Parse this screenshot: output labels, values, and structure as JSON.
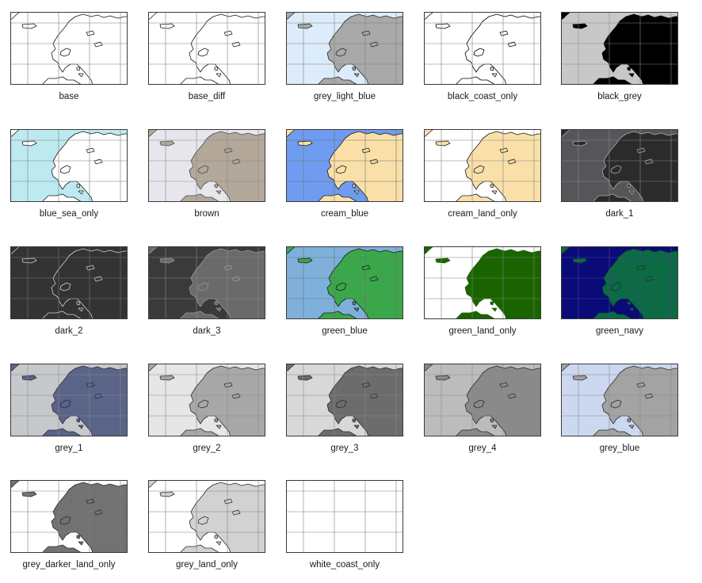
{
  "gallery": {
    "tiles": [
      {
        "label": "base",
        "land": "#ffffff",
        "sea": "#ffffff",
        "coast": "#1a1a1a",
        "grid": "#7f7f7f"
      },
      {
        "label": "base_diff",
        "land": "#ffffff",
        "sea": "#ffffff",
        "coast": "#1a1a1a",
        "grid": "#7f7f7f"
      },
      {
        "label": "grey_light_blue",
        "land": "#a9a9a9",
        "sea": "#dcecfa",
        "coast": "#2a2a2a",
        "grid": "#7f7f7f"
      },
      {
        "label": "black_coast_only",
        "land": "#ffffff",
        "sea": "#ffffff",
        "coast": "#000000",
        "grid": "#7f7f7f"
      },
      {
        "label": "black_grey",
        "land": "#000000",
        "sea": "#c8c8c8",
        "coast": "#000000",
        "grid": "#8a8a8a"
      },
      {
        "label": "blue_sea_only",
        "land": "#ffffff",
        "sea": "#bdeaf0",
        "coast": "#1a1a1a",
        "grid": "#7f7f7f"
      },
      {
        "label": "brown",
        "land": "#b3a89a",
        "sea": "#e6e6ec",
        "coast": "#4a4a4a",
        "grid": "#8a8a8a"
      },
      {
        "label": "cream_blue",
        "land": "#fae0a8",
        "sea": "#6f9cf0",
        "coast": "#1a1a1a",
        "grid": "#6f6f6f"
      },
      {
        "label": "cream_land_only",
        "land": "#fae0a8",
        "sea": "#ffffff",
        "coast": "#1a1a1a",
        "grid": "#7f7f7f"
      },
      {
        "label": "dark_1",
        "land": "#2b2b2b",
        "sea": "#56565a",
        "coast": "#aaaaaa",
        "grid": "#8a8a8a"
      },
      {
        "label": "dark_2",
        "land": "#333333",
        "sea": "#333333",
        "coast": "#d0d0d0",
        "grid": "#777777"
      },
      {
        "label": "dark_3",
        "land": "#6a6a6a",
        "sea": "#3a3a3a",
        "coast": "#9a9a9a",
        "grid": "#8a8a8a"
      },
      {
        "label": "green_blue",
        "land": "#3aa84a",
        "sea": "#7fb0dc",
        "coast": "#1a1a1a",
        "grid": "#6f6f6f"
      },
      {
        "label": "green_land_only",
        "land": "#1a6400",
        "sea": "#ffffff",
        "coast": "#1a6400",
        "grid": "#7f7f7f"
      },
      {
        "label": "green_navy",
        "land": "#0c6a44",
        "sea": "#0a0a78",
        "coast": "#0a3a2a",
        "grid": "#4a4a8a"
      },
      {
        "label": "grey_1",
        "land": "#5a6488",
        "sea": "#c6c8cc",
        "coast": "#2a2a3a",
        "grid": "#8a8a8a"
      },
      {
        "label": "grey_2",
        "land": "#a8a8a8",
        "sea": "#e6e6e6",
        "coast": "#2a2a2a",
        "grid": "#8a8a8a"
      },
      {
        "label": "grey_3",
        "land": "#6c6c6c",
        "sea": "#d8d8d8",
        "coast": "#2a2a2a",
        "grid": "#8a8a8a"
      },
      {
        "label": "grey_4",
        "land": "#8a8a8a",
        "sea": "#bcbcbc",
        "coast": "#2a2a2a",
        "grid": "#8a8a8a"
      },
      {
        "label": "grey_blue",
        "land": "#a3a3a3",
        "sea": "#ccd8f0",
        "coast": "#2a2a2a",
        "grid": "#8a8a8a"
      },
      {
        "label": "grey_darker_land_only",
        "land": "#727272",
        "sea": "#ffffff",
        "coast": "#2a2a2a",
        "grid": "#7f7f7f"
      },
      {
        "label": "grey_land_only",
        "land": "#d2d2d2",
        "sea": "#ffffff",
        "coast": "#2a2a2a",
        "grid": "#7f7f7f"
      },
      {
        "label": "white_coast_only",
        "land": "#ffffff",
        "sea": "#ffffff",
        "coast": "#ffffff",
        "grid": "#7f7f7f"
      }
    ]
  }
}
